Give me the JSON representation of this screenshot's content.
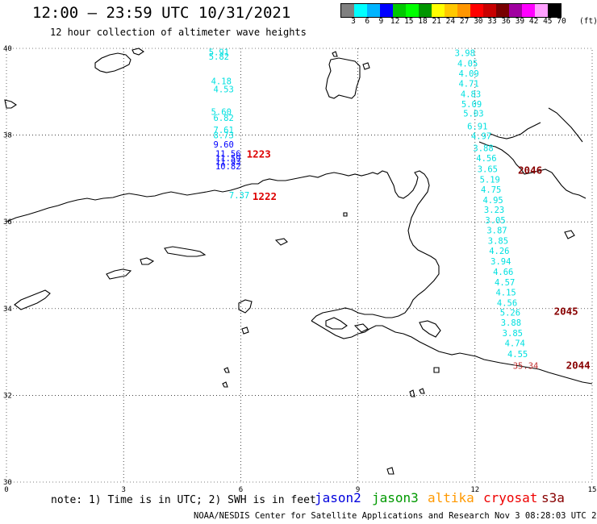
{
  "title": "12:00 – 23:59 UTC 10/31/2021",
  "subtitle": "12 hour collection of altimeter wave heights",
  "legend": {
    "colors": [
      "#808080",
      "#00ffff",
      "#00b4ff",
      "#0000ff",
      "#00c800",
      "#00ff00",
      "#009600",
      "#ffff00",
      "#ffc800",
      "#ff9600",
      "#ff0000",
      "#c80000",
      "#780000",
      "#a000a0",
      "#ff00ff",
      "#ffa0ff",
      "#000000"
    ],
    "labels": [
      "3",
      "6",
      "9",
      "12",
      "15",
      "18",
      "21",
      "24",
      "27",
      "30",
      "33",
      "36",
      "39",
      "42",
      "45",
      "70"
    ],
    "unit": "(ft)"
  },
  "axes": {
    "x_ticks": [
      "0",
      "3",
      "6",
      "9",
      "12",
      "15"
    ],
    "y_ticks": [
      "40",
      "38",
      "36",
      "34",
      "32",
      "30"
    ]
  },
  "tracks": [
    {
      "color": "#00e0e0",
      "points": [
        {
          "v": "5.91",
          "x": 5.18,
          "y": 39.92
        },
        {
          "v": "5.82",
          "x": 5.18,
          "y": 39.81
        },
        {
          "v": "4.18",
          "x": 5.24,
          "y": 39.25
        },
        {
          "v": "4.53",
          "x": 5.3,
          "y": 39.06
        },
        {
          "v": "5.60",
          "x": 5.24,
          "y": 38.54
        },
        {
          "v": "6.82",
          "x": 5.3,
          "y": 38.4
        },
        {
          "v": "7.61",
          "x": 5.3,
          "y": 38.12
        },
        {
          "v": "8.73",
          "x": 5.3,
          "y": 38.0
        },
        {
          "v": "7.37",
          "x": 5.7,
          "y": 36.62
        }
      ]
    },
    {
      "color": "#0000ff",
      "points": [
        {
          "v": "9.60",
          "x": 5.3,
          "y": 37.79
        },
        {
          "v": "11.56",
          "x": 5.35,
          "y": 37.57
        },
        {
          "v": "11.59",
          "x": 5.35,
          "y": 37.47
        },
        {
          "v": "11.93",
          "x": 5.35,
          "y": 37.39
        },
        {
          "v": "10.82",
          "x": 5.35,
          "y": 37.29
        }
      ]
    },
    {
      "color": "#00e0e0",
      "points": [
        {
          "v": "3.98",
          "x": 11.48,
          "y": 39.9
        },
        {
          "v": "4.05",
          "x": 11.55,
          "y": 39.66
        },
        {
          "v": "4.09",
          "x": 11.58,
          "y": 39.42
        },
        {
          "v": "4.71",
          "x": 11.58,
          "y": 39.19
        },
        {
          "v": "4.83",
          "x": 11.63,
          "y": 38.95
        },
        {
          "v": "5.09",
          "x": 11.65,
          "y": 38.72
        },
        {
          "v": "5.03",
          "x": 11.7,
          "y": 38.5
        },
        {
          "v": "6.91",
          "x": 11.8,
          "y": 38.21
        },
        {
          "v": "4.97",
          "x": 11.9,
          "y": 37.98
        },
        {
          "v": "3.88",
          "x": 11.95,
          "y": 37.7
        },
        {
          "v": "4.56",
          "x": 12.03,
          "y": 37.47
        },
        {
          "v": "3.65",
          "x": 12.06,
          "y": 37.22
        },
        {
          "v": "5.19",
          "x": 12.12,
          "y": 36.98
        },
        {
          "v": "4.75",
          "x": 12.15,
          "y": 36.75
        },
        {
          "v": "4.95",
          "x": 12.2,
          "y": 36.51
        },
        {
          "v": "3.23",
          "x": 12.23,
          "y": 36.28
        },
        {
          "v": "3.05",
          "x": 12.26,
          "y": 36.04
        },
        {
          "v": "3.87",
          "x": 12.3,
          "y": 35.81
        },
        {
          "v": "3.85",
          "x": 12.33,
          "y": 35.57
        },
        {
          "v": "4.26",
          "x": 12.36,
          "y": 35.33
        },
        {
          "v": "3.94",
          "x": 12.4,
          "y": 35.09
        },
        {
          "v": "4.66",
          "x": 12.46,
          "y": 34.85
        },
        {
          "v": "4.57",
          "x": 12.5,
          "y": 34.61
        },
        {
          "v": "4.15",
          "x": 12.53,
          "y": 34.38
        },
        {
          "v": "4.56",
          "x": 12.56,
          "y": 34.14
        },
        {
          "v": "5.26",
          "x": 12.64,
          "y": 33.91
        },
        {
          "v": "3.88",
          "x": 12.66,
          "y": 33.68
        },
        {
          "v": "3.85",
          "x": 12.7,
          "y": 33.44
        },
        {
          "v": "4.74",
          "x": 12.76,
          "y": 33.21
        },
        {
          "v": "4.55",
          "x": 12.83,
          "y": 32.96
        }
      ]
    },
    {
      "color": "#c03030",
      "points": [
        {
          "v": "35.34",
          "x": 12.97,
          "y": 32.69
        }
      ]
    }
  ],
  "pass_labels": [
    {
      "v": "1223",
      "color": "#dd0000",
      "x": 6.15,
      "y": 37.57
    },
    {
      "v": "1222",
      "color": "#dd0000",
      "x": 6.3,
      "y": 36.6
    },
    {
      "v": "2046",
      "color": "#880000",
      "x": 13.1,
      "y": 37.2
    },
    {
      "v": "2045",
      "color": "#880000",
      "x": 14.02,
      "y": 33.95
    },
    {
      "v": "2044",
      "color": "#880000",
      "x": 14.33,
      "y": 32.7
    }
  ],
  "note": "note: 1) Time is in UTC; 2) SWH is in feet",
  "satellites": [
    {
      "name": "jason2",
      "color": "#0000dd"
    },
    {
      "name": "jason3",
      "color": "#009900"
    },
    {
      "name": "altika",
      "color": "#ff9900"
    },
    {
      "name": "cryosat",
      "color": "#ee0000"
    },
    {
      "name": "s3a",
      "color": "#880000"
    }
  ],
  "footer": "NOAA/NESDIS Center for Satellite Applications and Research   Nov  3 08:28:03 UTC 2021"
}
